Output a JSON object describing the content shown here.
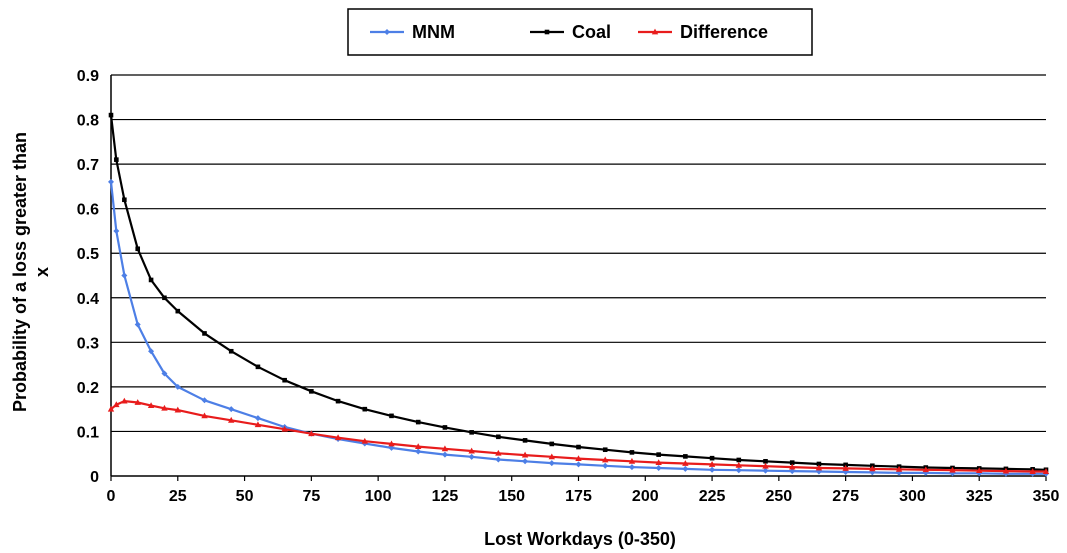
{
  "chart_data": {
    "type": "line",
    "xlabel": "Lost Workdays (0-350)",
    "ylabel_lines": [
      "Probability of a loss greater than",
      "x"
    ],
    "xlim": [
      0,
      350
    ],
    "ylim": [
      0,
      0.9
    ],
    "xticks": [
      0,
      25,
      50,
      75,
      100,
      125,
      150,
      175,
      200,
      225,
      250,
      275,
      300,
      325,
      350
    ],
    "yticks": [
      0,
      0.1,
      0.2,
      0.3,
      0.4,
      0.5,
      0.6,
      0.7,
      0.8,
      0.9
    ],
    "ytick_labels": [
      "0",
      "0.1",
      "0.2",
      "0.3",
      "0.4",
      "0.5",
      "0.6",
      "0.7",
      "0.8",
      "0.9"
    ],
    "grid": "horizontal",
    "legend_position": "top-center",
    "x": [
      0,
      2,
      5,
      10,
      15,
      20,
      25,
      35,
      45,
      55,
      65,
      75,
      85,
      95,
      105,
      115,
      125,
      135,
      145,
      155,
      165,
      175,
      185,
      195,
      205,
      215,
      225,
      235,
      245,
      255,
      265,
      275,
      285,
      295,
      305,
      315,
      325,
      335,
      345,
      350
    ],
    "series": [
      {
        "name": "MNM",
        "color": "#4d7fe6",
        "marker": "diamond",
        "values": [
          0.66,
          0.55,
          0.45,
          0.34,
          0.28,
          0.23,
          0.2,
          0.17,
          0.15,
          0.13,
          0.11,
          0.095,
          0.083,
          0.073,
          0.063,
          0.055,
          0.048,
          0.043,
          0.037,
          0.033,
          0.029,
          0.026,
          0.023,
          0.02,
          0.018,
          0.016,
          0.014,
          0.013,
          0.012,
          0.011,
          0.01,
          0.009,
          0.008,
          0.007,
          0.007,
          0.006,
          0.006,
          0.005,
          0.005,
          0.005
        ]
      },
      {
        "name": "Coal",
        "color": "#000000",
        "marker": "square",
        "values": [
          0.81,
          0.71,
          0.62,
          0.51,
          0.44,
          0.4,
          0.37,
          0.32,
          0.28,
          0.245,
          0.215,
          0.19,
          0.168,
          0.15,
          0.135,
          0.121,
          0.109,
          0.098,
          0.088,
          0.08,
          0.072,
          0.065,
          0.059,
          0.053,
          0.048,
          0.044,
          0.04,
          0.036,
          0.033,
          0.03,
          0.027,
          0.025,
          0.023,
          0.021,
          0.019,
          0.018,
          0.017,
          0.016,
          0.015,
          0.014
        ]
      },
      {
        "name": "Difference",
        "color": "#e81c1c",
        "marker": "triangle",
        "values": [
          0.15,
          0.16,
          0.168,
          0.165,
          0.158,
          0.152,
          0.148,
          0.135,
          0.125,
          0.115,
          0.105,
          0.095,
          0.086,
          0.078,
          0.072,
          0.066,
          0.061,
          0.056,
          0.051,
          0.047,
          0.043,
          0.039,
          0.036,
          0.033,
          0.03,
          0.028,
          0.026,
          0.024,
          0.022,
          0.02,
          0.018,
          0.017,
          0.016,
          0.015,
          0.014,
          0.013,
          0.012,
          0.011,
          0.01,
          0.01
        ]
      }
    ]
  }
}
